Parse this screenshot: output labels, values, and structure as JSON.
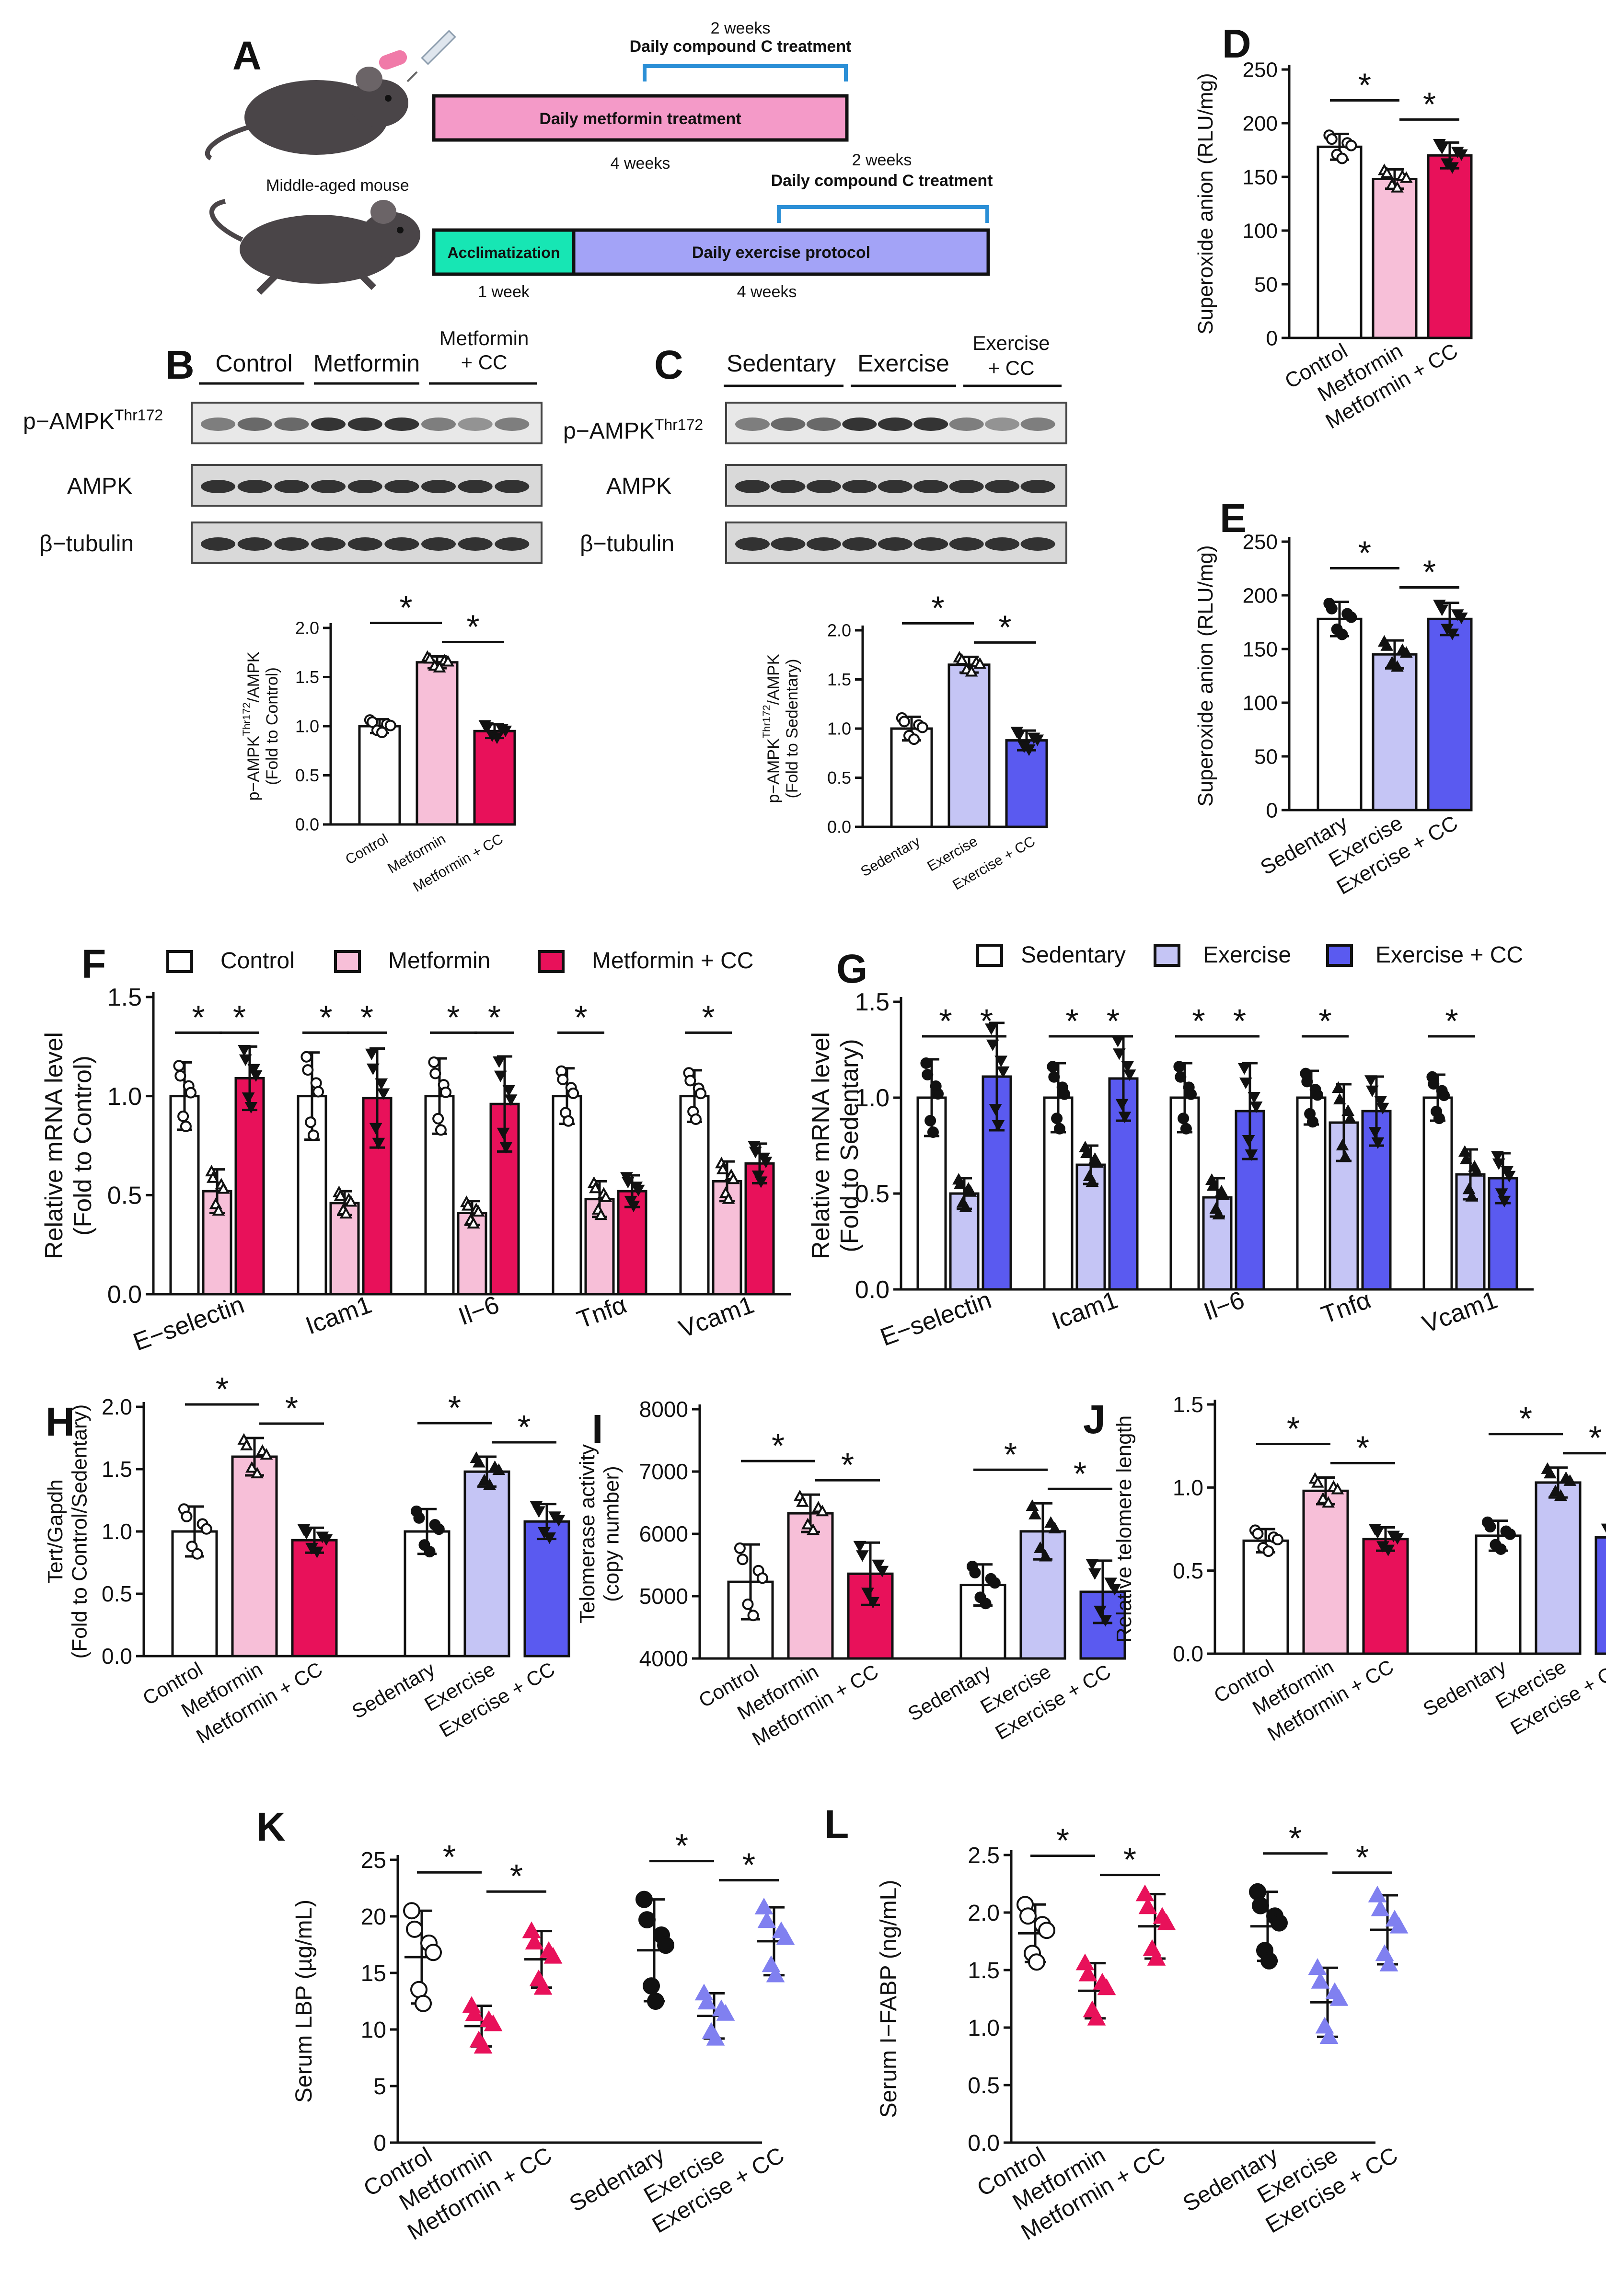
{
  "colors": {
    "control": "#ffffff",
    "metformin": "#f7bfd8",
    "metformin_cc": "#e8115a",
    "sedentary": "#ffffff",
    "exercise": "#c5c5f5",
    "exercise_cc": "#5a5af0",
    "pink_bar": "#f49ac8",
    "teal_bar": "#17e6b4",
    "lavender_bar": "#a3a3f7",
    "bracket_blue": "#2b8fd6"
  },
  "panelA": {
    "letter": "A",
    "mouse_label": "Middle-aged mouse",
    "top_bracket_weeks": "2 weeks",
    "top_bracket_label": "Daily compound C treatment",
    "metformin_bar": "Daily metformin treatment",
    "metformin_weeks": "4 weeks",
    "bottom_bracket_weeks": "2 weeks",
    "bottom_bracket_label": "Daily compound C treatment",
    "acclimatization": "Acclimatization",
    "exercise_bar": "Daily exercise protocol",
    "week1": "1 week",
    "week4": "4 weeks"
  },
  "panelB": {
    "letter": "B",
    "groups": [
      "Control",
      "Metformin",
      "Metformin",
      "+ CC"
    ],
    "blots": [
      "p−AMPK",
      "Thr172",
      "AMPK",
      "β−tubulin"
    ]
  },
  "panelC": {
    "letter": "C",
    "groups": [
      "Sedentary",
      "Exercise",
      "Exercise",
      "+ CC"
    ],
    "blots": [
      "p−AMPK",
      "Thr172",
      "AMPK",
      "β−tubulin"
    ]
  },
  "star": "*",
  "chart_data": [
    {
      "id": "B_quant",
      "type": "bar",
      "ylabel_lines": [
        "p−AMPK",
        "Thr172",
        "/AMPK",
        "(Fold to Control)"
      ],
      "categories": [
        "Control",
        "Metformin",
        "Metformin + CC"
      ],
      "values": [
        1.0,
        1.65,
        0.95
      ],
      "errors": [
        0.07,
        0.06,
        0.07
      ],
      "yticks": [
        "0.0",
        "0.5",
        "1.0",
        "1.5",
        "2.0"
      ],
      "ylim": [
        0,
        2.0
      ]
    },
    {
      "id": "C_quant",
      "type": "bar",
      "ylabel_lines": [
        "p−AMPK",
        "Thr172",
        "/AMPK",
        "(Fold to Sedentary)"
      ],
      "categories": [
        "Sedentary",
        "Exercise",
        "Exercise + CC"
      ],
      "values": [
        1.0,
        1.65,
        0.88
      ],
      "errors": [
        0.12,
        0.08,
        0.1
      ],
      "yticks": [
        "0.0",
        "0.5",
        "1.0",
        "1.5",
        "2.0"
      ],
      "ylim": [
        0,
        2.0
      ]
    },
    {
      "id": "D",
      "letter": "D",
      "type": "bar",
      "ylabel": "Superoxide anion (RLU/mg)",
      "categories": [
        "Control",
        "Metformin",
        "Metformin + CC"
      ],
      "values": [
        178,
        148,
        170
      ],
      "errors": [
        12,
        9,
        12
      ],
      "yticks": [
        "0",
        "50",
        "100",
        "150",
        "200",
        "250"
      ],
      "ylim": [
        0,
        250
      ]
    },
    {
      "id": "E",
      "letter": "E",
      "type": "bar",
      "ylabel": "Superoxide anion (RLU/mg)",
      "categories": [
        "Sedentary",
        "Exercise",
        "Exercise + CC"
      ],
      "values": [
        178,
        145,
        178
      ],
      "errors": [
        16,
        13,
        15
      ],
      "yticks": [
        "0",
        "50",
        "100",
        "150",
        "200",
        "250"
      ],
      "ylim": [
        0,
        250
      ]
    },
    {
      "id": "F",
      "letter": "F",
      "type": "bar",
      "ylabel_lines": [
        "Relative mRNA level",
        "(Fold to Control)"
      ],
      "categories": [
        "E−selectin",
        "Icam1",
        "Il−6",
        "Tnfα",
        "Vcam1"
      ],
      "legend": [
        "Control",
        "Metformin",
        "Metformin + CC"
      ],
      "series": [
        {
          "name": "Control",
          "values": [
            1.0,
            1.0,
            1.0,
            1.0,
            1.0
          ],
          "errors": [
            0.17,
            0.22,
            0.19,
            0.14,
            0.13
          ]
        },
        {
          "name": "Metformin",
          "values": [
            0.52,
            0.46,
            0.41,
            0.48,
            0.57
          ],
          "errors": [
            0.11,
            0.06,
            0.06,
            0.09,
            0.1
          ]
        },
        {
          "name": "Metformin + CC",
          "values": [
            1.09,
            0.99,
            0.96,
            0.52,
            0.66
          ],
          "errors": [
            0.16,
            0.25,
            0.24,
            0.08,
            0.1
          ]
        }
      ],
      "yticks": [
        "0.0",
        "0.5",
        "1.0",
        "1.5"
      ],
      "ylim": [
        0,
        1.5
      ]
    },
    {
      "id": "G",
      "letter": "G",
      "type": "bar",
      "ylabel_lines": [
        "Relative mRNA level",
        "(Fold to Sedentary)"
      ],
      "categories": [
        "E−selectin",
        "Icam1",
        "Il−6",
        "Tnfα",
        "Vcam1"
      ],
      "legend": [
        "Sedentary",
        "Exercise",
        "Exercise + CC"
      ],
      "series": [
        {
          "name": "Sedentary",
          "values": [
            1.0,
            1.0,
            1.0,
            1.0,
            1.0
          ],
          "errors": [
            0.2,
            0.18,
            0.18,
            0.14,
            0.12
          ]
        },
        {
          "name": "Exercise",
          "values": [
            0.5,
            0.65,
            0.48,
            0.87,
            0.6
          ],
          "errors": [
            0.08,
            0.1,
            0.1,
            0.2,
            0.13
          ]
        },
        {
          "name": "Exercise + CC",
          "values": [
            1.11,
            1.1,
            0.93,
            0.93,
            0.58
          ],
          "errors": [
            0.28,
            0.22,
            0.25,
            0.18,
            0.13
          ]
        }
      ],
      "yticks": [
        "0.0",
        "0.5",
        "1.0",
        "1.5"
      ],
      "ylim": [
        0,
        1.5
      ]
    },
    {
      "id": "H",
      "letter": "H",
      "type": "bar",
      "ylabel_lines": [
        "Tert/Gapdh",
        "(Fold to Control/Sedentary)"
      ],
      "categories": [
        "Control",
        "Metformin",
        "Metformin + CC",
        "Sedentary",
        "Exercise",
        "Exercise + CC"
      ],
      "values": [
        1.0,
        1.6,
        0.93,
        1.0,
        1.48,
        1.08
      ],
      "errors": [
        0.2,
        0.15,
        0.1,
        0.18,
        0.12,
        0.14
      ],
      "yticks": [
        "0.0",
        "0.5",
        "1.0",
        "1.5",
        "2.0"
      ],
      "ylim": [
        0,
        2.0
      ]
    },
    {
      "id": "I",
      "letter": "I",
      "type": "bar",
      "ylabel_lines": [
        "Telomerase activity",
        "(copy number)"
      ],
      "categories": [
        "Control",
        "Metformin",
        "Metformin + CC",
        "Sedentary",
        "Exercise",
        "Exercise + CC"
      ],
      "values": [
        5230,
        6330,
        5360,
        5180,
        6040,
        5070
      ],
      "errors": [
        600,
        300,
        500,
        330,
        450,
        500
      ],
      "yticks": [
        "4000",
        "5000",
        "6000",
        "7000",
        "8000"
      ],
      "ylim": [
        4000,
        8000
      ]
    },
    {
      "id": "J",
      "letter": "J",
      "type": "bar",
      "ylabel": "Relative telomere length",
      "categories": [
        "Control",
        "Metformin",
        "Metformin + CC",
        "Sedentary",
        "Exercise",
        "Exercise + CC"
      ],
      "values": [
        0.68,
        0.98,
        0.69,
        0.71,
        1.03,
        0.7
      ],
      "errors": [
        0.07,
        0.08,
        0.07,
        0.09,
        0.09,
        0.06
      ],
      "yticks": [
        "0.0",
        "0.5",
        "1.0",
        "1.5"
      ],
      "ylim": [
        0,
        1.5
      ]
    },
    {
      "id": "K",
      "letter": "K",
      "type": "scatter",
      "ylabel": "Serum LBP (µg/mL)",
      "categories": [
        "Control",
        "Metformin",
        "Metformin + CC",
        "Sedentary",
        "Exercise",
        "Exercise + CC"
      ],
      "means": [
        16.4,
        10.3,
        16.2,
        17.0,
        11.2,
        17.8
      ],
      "sds": [
        4.1,
        1.8,
        2.5,
        4.5,
        2.0,
        3.0
      ],
      "yticks": [
        "0",
        "5",
        "10",
        "15",
        "20",
        "25"
      ],
      "ylim": [
        0,
        25
      ]
    },
    {
      "id": "L",
      "letter": "L",
      "type": "scatter",
      "ylabel": "Serum I−FABP (ng/mL)",
      "categories": [
        "Control",
        "Metformin",
        "Metformin + CC",
        "Sedentary",
        "Exercise",
        "Exercise + CC"
      ],
      "means": [
        1.82,
        1.32,
        1.88,
        1.88,
        1.22,
        1.85
      ],
      "sds": [
        0.25,
        0.24,
        0.28,
        0.3,
        0.3,
        0.3
      ],
      "yticks": [
        "0.0",
        "0.5",
        "1.0",
        "1.5",
        "2.0",
        "2.5"
      ],
      "ylim": [
        0,
        2.5
      ]
    }
  ]
}
